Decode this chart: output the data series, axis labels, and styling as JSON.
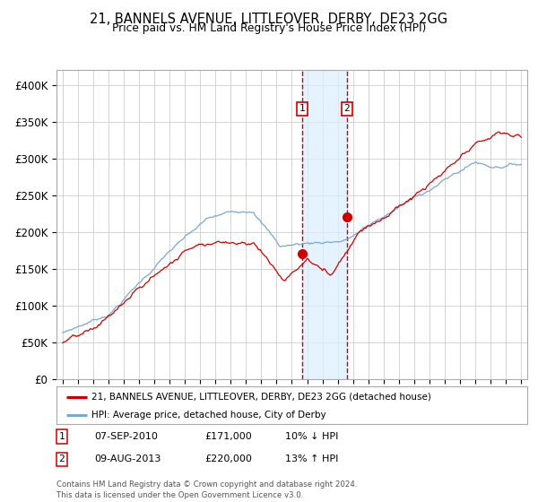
{
  "title": "21, BANNELS AVENUE, LITTLEOVER, DERBY, DE23 2GG",
  "subtitle": "Price paid vs. HM Land Registry's House Price Index (HPI)",
  "legend_property": "21, BANNELS AVENUE, LITTLEOVER, DERBY, DE23 2GG (detached house)",
  "legend_hpi": "HPI: Average price, detached house, City of Derby",
  "transaction1_date": "07-SEP-2010",
  "transaction1_price": 171000,
  "transaction1_note": "10% ↓ HPI",
  "transaction2_date": "09-AUG-2013",
  "transaction2_price": 220000,
  "transaction2_note": "13% ↑ HPI",
  "footer": "Contains HM Land Registry data © Crown copyright and database right 2024.\nThis data is licensed under the Open Government Licence v3.0.",
  "property_color": "#cc0000",
  "hpi_color": "#7ba7d0",
  "vline_color": "#cc0000",
  "shade_color": "#ddeeff",
  "marker_color": "#cc0000",
  "grid_color": "#cccccc",
  "background_color": "#ffffff",
  "ylim": [
    0,
    420000
  ],
  "yticks": [
    0,
    50000,
    100000,
    150000,
    200000,
    250000,
    300000,
    350000,
    400000
  ],
  "ylabels": [
    "£0",
    "£50K",
    "£100K",
    "£150K",
    "£200K",
    "£250K",
    "£300K",
    "£350K",
    "£400K"
  ],
  "xlim_left": 1994.6,
  "xlim_right": 2025.4,
  "t1_x": 2010.67,
  "t2_x": 2013.6
}
